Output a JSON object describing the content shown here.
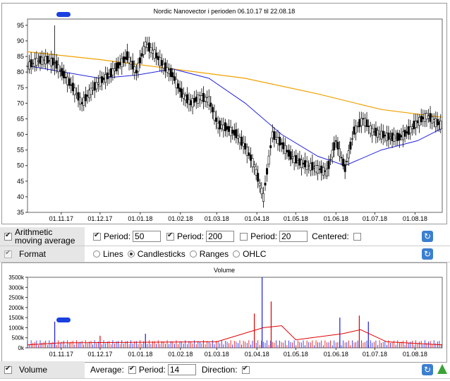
{
  "price_chart": {
    "title": "Nordic Nanovector i perioden 06.10.17 til 22.08.18",
    "y_ticks": [
      35,
      40,
      45,
      50,
      55,
      60,
      65,
      70,
      75,
      80,
      85,
      90,
      95
    ],
    "x_ticks": [
      "01.11.17",
      "01.12.17",
      "01.01.18",
      "01.02.18",
      "01.03.18",
      "01.04.18",
      "01.05.18",
      "01.06.18",
      "01.07.18",
      "01.08.18"
    ],
    "colors": {
      "candle": "#000000",
      "ma50": "#2222dd",
      "ma200": "#f0a000",
      "marker": "#1a40e0"
    }
  },
  "chart_data": [
    {
      "type": "candlestick",
      "title": "Nordic Nanovector i perioden 06.10.17 til 22.08.18",
      "x_start": "06.10.17",
      "x_end": "22.08.18",
      "ylim": [
        35,
        97
      ],
      "close_series": [
        {
          "date": "06.10.17",
          "close": 82
        },
        {
          "date": "13.10.17",
          "close": 83.5
        },
        {
          "date": "20.10.17",
          "close": 84
        },
        {
          "date": "27.10.17",
          "close": 83
        },
        {
          "date": "03.11.17",
          "close": 79
        },
        {
          "date": "10.11.17",
          "close": 75
        },
        {
          "date": "17.11.17",
          "close": 70
        },
        {
          "date": "24.11.17",
          "close": 74
        },
        {
          "date": "01.12.17",
          "close": 77
        },
        {
          "date": "08.12.17",
          "close": 79
        },
        {
          "date": "15.12.17",
          "close": 82
        },
        {
          "date": "22.12.17",
          "close": 85
        },
        {
          "date": "29.12.17",
          "close": 80
        },
        {
          "date": "05.01.18",
          "close": 89
        },
        {
          "date": "12.01.18",
          "close": 86
        },
        {
          "date": "19.01.18",
          "close": 82
        },
        {
          "date": "26.01.18",
          "close": 79
        },
        {
          "date": "02.02.18",
          "close": 73
        },
        {
          "date": "09.02.18",
          "close": 70
        },
        {
          "date": "16.02.18",
          "close": 72
        },
        {
          "date": "23.02.18",
          "close": 71
        },
        {
          "date": "02.03.18",
          "close": 63
        },
        {
          "date": "09.03.18",
          "close": 62
        },
        {
          "date": "16.03.18",
          "close": 60
        },
        {
          "date": "23.03.18",
          "close": 56
        },
        {
          "date": "30.03.18",
          "close": 50
        },
        {
          "date": "06.04.18",
          "close": 40
        },
        {
          "date": "13.04.18",
          "close": 60
        },
        {
          "date": "20.04.18",
          "close": 57
        },
        {
          "date": "27.04.18",
          "close": 53
        },
        {
          "date": "04.05.18",
          "close": 51
        },
        {
          "date": "11.05.18",
          "close": 50
        },
        {
          "date": "18.05.18",
          "close": 49
        },
        {
          "date": "25.05.18",
          "close": 48
        },
        {
          "date": "01.06.18",
          "close": 58
        },
        {
          "date": "08.06.18",
          "close": 49
        },
        {
          "date": "15.06.18",
          "close": 61
        },
        {
          "date": "22.06.18",
          "close": 65
        },
        {
          "date": "29.06.18",
          "close": 61
        },
        {
          "date": "06.07.18",
          "close": 60
        },
        {
          "date": "13.07.18",
          "close": 59
        },
        {
          "date": "20.07.18",
          "close": 59
        },
        {
          "date": "27.07.18",
          "close": 61
        },
        {
          "date": "03.08.18",
          "close": 64
        },
        {
          "date": "10.08.18",
          "close": 66
        },
        {
          "date": "17.08.18",
          "close": 64
        },
        {
          "date": "22.08.18",
          "close": 63
        }
      ],
      "ma50": [
        {
          "date": "06.10.17",
          "value": 82
        },
        {
          "date": "03.11.17",
          "value": 80
        },
        {
          "date": "01.12.17",
          "value": 78
        },
        {
          "date": "29.12.17",
          "value": 79
        },
        {
          "date": "26.01.18",
          "value": 81
        },
        {
          "date": "23.02.18",
          "value": 78
        },
        {
          "date": "23.03.18",
          "value": 70
        },
        {
          "date": "20.04.18",
          "value": 60
        },
        {
          "date": "18.05.18",
          "value": 53
        },
        {
          "date": "08.06.18",
          "value": 50
        },
        {
          "date": "06.07.18",
          "value": 55
        },
        {
          "date": "03.08.18",
          "value": 58
        },
        {
          "date": "22.08.18",
          "value": 62
        }
      ],
      "ma200": [
        {
          "date": "06.10.17",
          "value": 86.5
        },
        {
          "date": "01.12.17",
          "value": 84
        },
        {
          "date": "26.01.18",
          "value": 81
        },
        {
          "date": "23.03.18",
          "value": 78
        },
        {
          "date": "18.05.18",
          "value": 73
        },
        {
          "date": "06.07.18",
          "value": 68
        },
        {
          "date": "22.08.18",
          "value": 65.5
        }
      ]
    },
    {
      "type": "bar",
      "title": "Volume",
      "ylim": [
        0,
        3500000
      ],
      "bars": [
        {
          "date": "27.10.17",
          "value": 1300000
        },
        {
          "date": "01.12.17",
          "value": 600000
        },
        {
          "date": "05.01.18",
          "value": 700000
        },
        {
          "date": "30.03.18",
          "value": 1700000
        },
        {
          "date": "05.04.18",
          "value": 3500000
        },
        {
          "date": "12.04.18",
          "value": 2300000
        },
        {
          "date": "04.06.18",
          "value": 1500000
        },
        {
          "date": "19.06.18",
          "value": 1600000
        },
        {
          "date": "26.06.18",
          "value": 1300000
        }
      ],
      "average14": [
        {
          "date": "06.10.17",
          "value": 150000
        },
        {
          "date": "01.11.17",
          "value": 250000
        },
        {
          "date": "01.03.18",
          "value": 300000
        },
        {
          "date": "06.04.18",
          "value": 1000000
        },
        {
          "date": "20.04.18",
          "value": 1100000
        },
        {
          "date": "01.05.18",
          "value": 400000
        },
        {
          "date": "06.06.18",
          "value": 700000
        },
        {
          "date": "20.06.18",
          "value": 900000
        },
        {
          "date": "10.07.18",
          "value": 300000
        },
        {
          "date": "22.08.18",
          "value": 150000
        }
      ]
    }
  ],
  "ama_row": {
    "label": "Arithmetic moving average",
    "period_label": "Period:",
    "p1": "50",
    "p2": "200",
    "p3": "20",
    "centered_label": "Centered:"
  },
  "format_row": {
    "label": "Format",
    "options": [
      "Lines",
      "Candlesticks",
      "Ranges",
      "OHLC"
    ],
    "selected": "Candlesticks"
  },
  "volume_chart": {
    "title": "Volume",
    "y_ticks": [
      "0k",
      "500k",
      "1000k",
      "1500k",
      "2000k",
      "2500k",
      "3000k",
      "3500k"
    ],
    "x_ticks": [
      "01.11.17",
      "01.12.17",
      "01.01.18",
      "01.02.18",
      "01.03.18",
      "01.04.18",
      "01.05.18",
      "01.06.18",
      "01.07.18",
      "01.08.18"
    ],
    "colors": {
      "bar_red": "#e00000",
      "bar_blue": "#1a1ae0",
      "avg": "#e00000"
    }
  },
  "volume_row": {
    "label": "Volume",
    "average_label": "Average:",
    "period_label": "Period:",
    "period": "14",
    "direction_label": "Direction:"
  }
}
